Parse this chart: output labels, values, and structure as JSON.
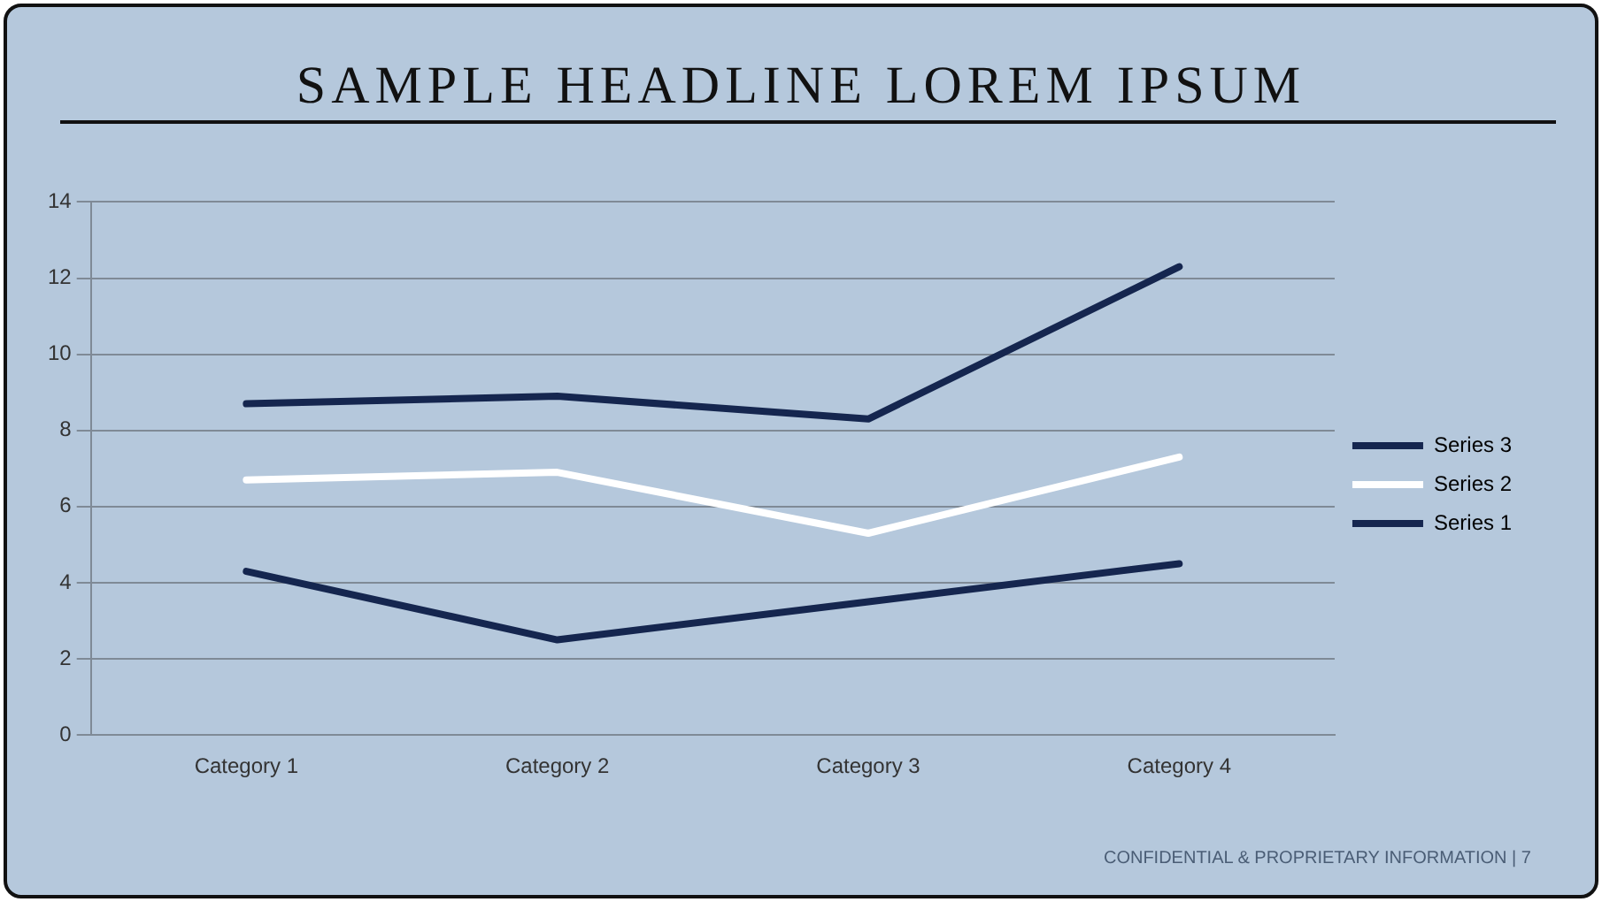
{
  "chart_data": {
    "type": "line",
    "title": "SAMPLE HEADLINE LOREM IPSUM",
    "categories": [
      "Category 1",
      "Category 2",
      "Category 3",
      "Category 4"
    ],
    "series": [
      {
        "name": "Series 1",
        "color": "#15264f",
        "values": [
          4.3,
          2.5,
          3.5,
          4.5
        ]
      },
      {
        "name": "Series 2",
        "color": "#ffffff",
        "values": [
          6.7,
          6.9,
          5.3,
          7.3
        ]
      },
      {
        "name": "Series 3",
        "color": "#15264f",
        "values": [
          8.7,
          8.9,
          8.3,
          12.3
        ]
      }
    ],
    "ylim": [
      0,
      14
    ],
    "yticks": [
      0,
      2,
      4,
      6,
      8,
      10,
      12,
      14
    ],
    "grid": "y",
    "legend": "right",
    "marker": "none",
    "line_style": "solid",
    "annotations": [
      "CONFIDENTIAL & PROPRIETARY INFORMATION | 7"
    ]
  }
}
